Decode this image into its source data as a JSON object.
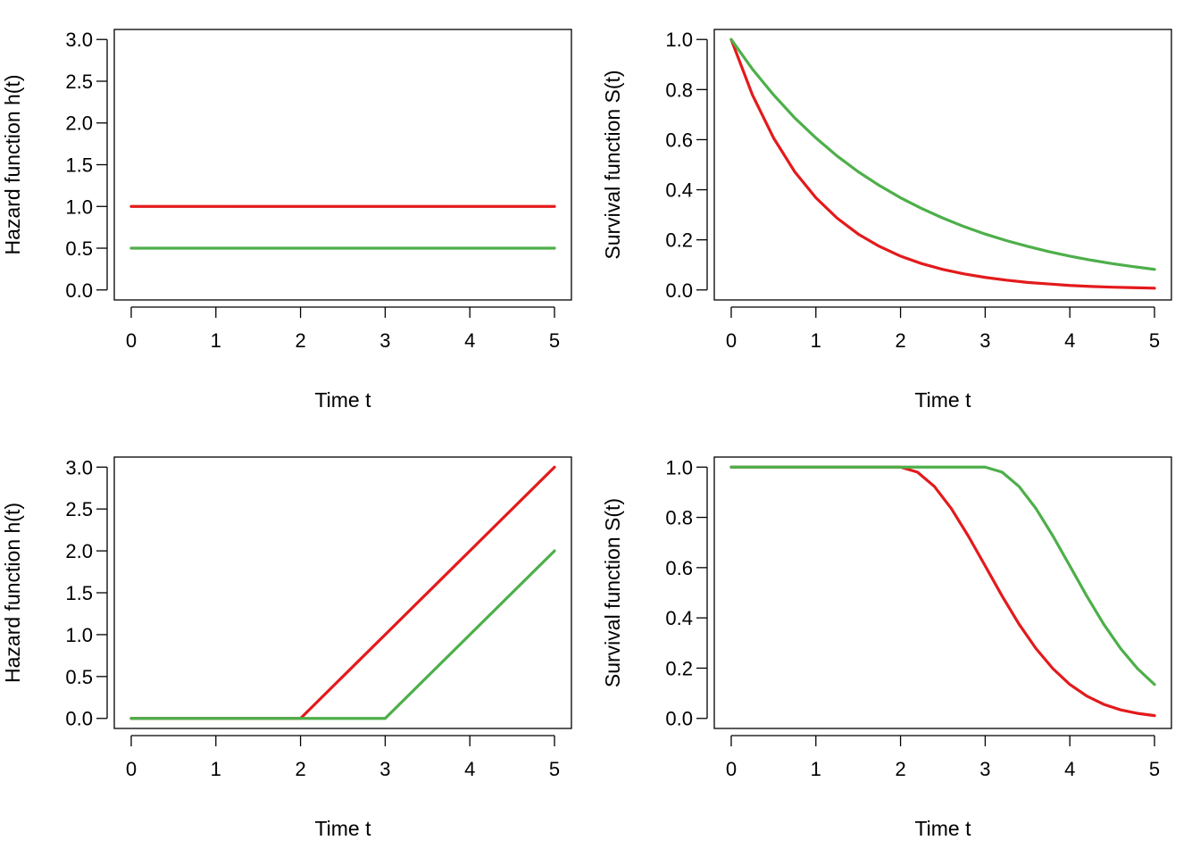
{
  "colors": {
    "red": "#E31A1C",
    "green": "#4DAF4A"
  },
  "chart_data": [
    {
      "type": "line",
      "title": "",
      "xlabel": "Time t",
      "ylabel": "Hazard function h(t)",
      "xlim": [
        0,
        5
      ],
      "ylim": [
        0,
        3
      ],
      "xticks": [
        "0",
        "1",
        "2",
        "3",
        "4",
        "5"
      ],
      "yticks": [
        "0.0",
        "0.5",
        "1.0",
        "1.5",
        "2.0",
        "2.5",
        "3.0"
      ],
      "grid": false,
      "series": [
        {
          "color": "#E31A1C",
          "x": [
            0,
            5
          ],
          "y": [
            1.0,
            1.0
          ]
        },
        {
          "color": "#4DAF4A",
          "x": [
            0,
            5
          ],
          "y": [
            0.5,
            0.5
          ]
        }
      ]
    },
    {
      "type": "line",
      "title": "",
      "xlabel": "Time t",
      "ylabel": "Survival function S(t)",
      "xlim": [
        0,
        5
      ],
      "ylim": [
        0,
        1
      ],
      "xticks": [
        "0",
        "1",
        "2",
        "3",
        "4",
        "5"
      ],
      "yticks": [
        "0.0",
        "0.2",
        "0.4",
        "0.6",
        "0.8",
        "1.0"
      ],
      "grid": false,
      "series": [
        {
          "color": "#E31A1C",
          "x": [
            0,
            0.25,
            0.5,
            0.75,
            1,
            1.25,
            1.5,
            1.75,
            2,
            2.25,
            2.5,
            2.75,
            3,
            3.25,
            3.5,
            3.75,
            4,
            4.25,
            4.5,
            4.75,
            5
          ],
          "y": [
            1.0,
            0.779,
            0.607,
            0.472,
            0.368,
            0.287,
            0.223,
            0.174,
            0.135,
            0.105,
            0.082,
            0.064,
            0.05,
            0.039,
            0.03,
            0.024,
            0.018,
            0.014,
            0.011,
            0.009,
            0.007
          ]
        },
        {
          "color": "#4DAF4A",
          "x": [
            0,
            0.25,
            0.5,
            0.75,
            1,
            1.25,
            1.5,
            1.75,
            2,
            2.25,
            2.5,
            2.75,
            3,
            3.25,
            3.5,
            3.75,
            4,
            4.25,
            4.5,
            4.75,
            5
          ],
          "y": [
            1.0,
            0.882,
            0.779,
            0.687,
            0.607,
            0.535,
            0.472,
            0.417,
            0.368,
            0.325,
            0.287,
            0.253,
            0.223,
            0.197,
            0.174,
            0.153,
            0.135,
            0.119,
            0.105,
            0.093,
            0.082
          ]
        }
      ]
    },
    {
      "type": "line",
      "title": "",
      "xlabel": "Time t",
      "ylabel": "Hazard function h(t)",
      "xlim": [
        0,
        5
      ],
      "ylim": [
        0,
        3
      ],
      "xticks": [
        "0",
        "1",
        "2",
        "3",
        "4",
        "5"
      ],
      "yticks": [
        "0.0",
        "0.5",
        "1.0",
        "1.5",
        "2.0",
        "2.5",
        "3.0"
      ],
      "grid": false,
      "series": [
        {
          "color": "#E31A1C",
          "x": [
            0,
            2,
            5
          ],
          "y": [
            0,
            0,
            3
          ]
        },
        {
          "color": "#4DAF4A",
          "x": [
            0,
            3,
            5
          ],
          "y": [
            0,
            0,
            2
          ]
        }
      ]
    },
    {
      "type": "line",
      "title": "",
      "xlabel": "Time t",
      "ylabel": "Survival function S(t)",
      "xlim": [
        0,
        5
      ],
      "ylim": [
        0,
        1
      ],
      "xticks": [
        "0",
        "1",
        "2",
        "3",
        "4",
        "5"
      ],
      "yticks": [
        "0.0",
        "0.2",
        "0.4",
        "0.6",
        "0.8",
        "1.0"
      ],
      "grid": false,
      "series": [
        {
          "color": "#E31A1C",
          "x": [
            0,
            2,
            2.2,
            2.4,
            2.6,
            2.8,
            3,
            3.2,
            3.4,
            3.6,
            3.8,
            4,
            4.2,
            4.4,
            4.6,
            4.8,
            5
          ],
          "y": [
            1.0,
            1.0,
            0.98,
            0.923,
            0.835,
            0.726,
            0.607,
            0.487,
            0.375,
            0.278,
            0.198,
            0.135,
            0.089,
            0.056,
            0.034,
            0.02,
            0.011
          ]
        },
        {
          "color": "#4DAF4A",
          "x": [
            0,
            3,
            3.2,
            3.4,
            3.6,
            3.8,
            4,
            4.2,
            4.4,
            4.6,
            4.8,
            5
          ],
          "y": [
            1.0,
            1.0,
            0.98,
            0.923,
            0.835,
            0.726,
            0.607,
            0.487,
            0.375,
            0.278,
            0.198,
            0.135
          ]
        }
      ]
    }
  ]
}
